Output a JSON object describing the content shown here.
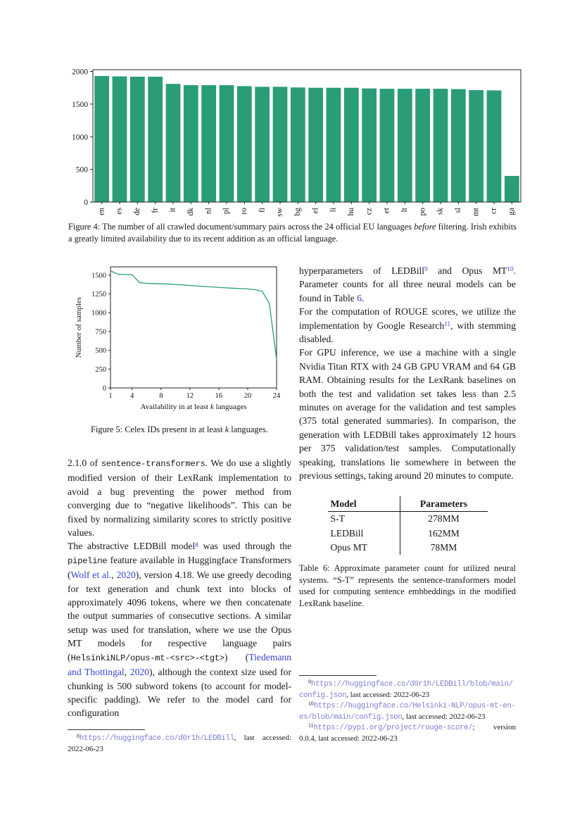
{
  "colors": {
    "accent_green": "#2a9d78",
    "cite_blue": "#3743c6",
    "url_purple": "#7e7ed2",
    "text": "#161616"
  },
  "chart_data": [
    {
      "type": "bar",
      "title": "",
      "categories": [
        "en",
        "es",
        "de",
        "fr",
        "it",
        "dk",
        "nl",
        "pl",
        "ro",
        "fi",
        "sw",
        "bg",
        "el",
        "li",
        "hu",
        "cz",
        "et",
        "lt",
        "po",
        "sk",
        "sl",
        "mt",
        "cr",
        "ga"
      ],
      "values": [
        1930,
        1925,
        1920,
        1920,
        1810,
        1790,
        1790,
        1790,
        1775,
        1765,
        1765,
        1755,
        1750,
        1750,
        1750,
        1740,
        1735,
        1735,
        1735,
        1735,
        1730,
        1715,
        1710,
        400
      ],
      "xlabel": "",
      "ylabel": "",
      "ylim": [
        0,
        2027
      ],
      "yticks": [
        0,
        500,
        1000,
        1500,
        2000
      ],
      "grid": false,
      "legend": "none",
      "bar_color": "#2a9d78"
    },
    {
      "type": "line",
      "title": "",
      "x": [
        1,
        2,
        3,
        4,
        5,
        6,
        7,
        8,
        9,
        10,
        11,
        12,
        13,
        14,
        15,
        16,
        17,
        18,
        19,
        20,
        21,
        22,
        23,
        24
      ],
      "y": [
        1556,
        1512,
        1508,
        1505,
        1401,
        1390,
        1387,
        1385,
        1381,
        1375,
        1369,
        1362,
        1355,
        1349,
        1343,
        1336,
        1330,
        1325,
        1321,
        1316,
        1306,
        1286,
        1123,
        380
      ],
      "xlabel_parts": [
        "Availability in at least ",
        "k",
        " languages"
      ],
      "ylabel": "Number of samples",
      "ylim": [
        0,
        1610
      ],
      "xlim": [
        1,
        24
      ],
      "yticks": [
        0,
        250,
        500,
        750,
        1000,
        1250,
        1500
      ],
      "xticks": [
        1,
        4,
        8,
        12,
        16,
        20,
        24
      ],
      "grid": false,
      "legend": "none",
      "line_color": "#2a9d78"
    }
  ],
  "figures": {
    "fig4_caption": [
      [
        "p",
        "Figure 4: The number of all crawled document/summary pairs across the 24 official EU languages "
      ],
      [
        "i",
        "before"
      ],
      [
        "p",
        " filtering. Irish exhibits a greatly limited availability due to its recent addition as an official language."
      ]
    ],
    "fig5_caption": [
      [
        "p",
        "Figure 5: Celex IDs present in at least "
      ],
      [
        "i",
        "k"
      ],
      [
        "p",
        " languages."
      ]
    ]
  },
  "left_column": {
    "paragraphs": [
      [
        [
          "p",
          "2.1.0 of "
        ],
        [
          "code",
          "sentence-transformers"
        ],
        [
          "p",
          ". We do use a slightly modified version of their LexRank implementation to avoid a bug preventing the power method from converging due to “negative likelihoods”. This can be fixed by normalizing similarity scores to strictly positive values."
        ]
      ],
      [
        [
          "p",
          "The abstractive LEDBill model"
        ],
        [
          "sup",
          "8"
        ],
        [
          "p",
          " was used through the "
        ],
        [
          "code",
          "pipeline"
        ],
        [
          "p",
          " feature available in Huggingface Transformers ("
        ],
        [
          "cite",
          "Wolf et al."
        ],
        [
          "p",
          ", "
        ],
        [
          "cite",
          "2020"
        ],
        [
          "p",
          "), version 4.18. We use greedy decoding for text generation and chunk text into blocks of approximately 4096 tokens, where we then concatenate the output summaries of consecutive sections. A similar setup was used for translation, where we use the Opus MT models for respective language pairs ("
        ],
        [
          "code",
          "HelsinkiNLP/opus-mt-<src>-<tgt>"
        ],
        [
          "p",
          ") ("
        ],
        [
          "cite",
          "Tiedemann and Thottingal"
        ],
        [
          "p",
          ", "
        ],
        [
          "cite",
          "2020"
        ],
        [
          "p",
          "), although the context size used for chunking is 500 subword tokens (to account for model-specific padding). We refer to the model card for configuration"
        ]
      ]
    ]
  },
  "right_column": {
    "paragraphs": [
      [
        [
          "p",
          "hyperparameters of LEDBill"
        ],
        [
          "sup",
          "9"
        ],
        [
          "p",
          " and Opus MT"
        ],
        [
          "sup",
          "10"
        ],
        [
          "p",
          ". Parameter counts for all three neural models can be found in Table "
        ],
        [
          "cite",
          "6"
        ],
        [
          "p",
          "."
        ]
      ],
      [
        [
          "p",
          "For the computation of ROUGE scores, we utilize the implementation by Google Research"
        ],
        [
          "sup",
          "11"
        ],
        [
          "p",
          ", with stemming disabled."
        ]
      ],
      [
        [
          "p",
          "For GPU inference, we use a machine with a single Nvidia Titan RTX with 24 GB GPU VRAM and 64 GB RAM. Obtaining results for the LexRank baselines on both the test and validation set takes less than 2.5 minutes on average for the validation and test samples (375 total generated summaries). In comparison, the generation with LEDBill takes approximately 12 hours per 375 validation/test samples. Computationally speaking, translations lie somewhere in between the previous settings, taking around 20 minutes to compute."
        ]
      ]
    ]
  },
  "table6": {
    "headers": [
      "Model",
      "Parameters"
    ],
    "rows": [
      [
        "S-T",
        "278MM"
      ],
      [
        "LEDBill",
        "162MM"
      ],
      [
        "Opus MT",
        "78MM"
      ]
    ],
    "caption": [
      [
        "p",
        "Table 6: Approximate parameter count for utilized neural systems. “S-T” represents the sentence-transformers model used for computing sentence embbeddings in the modified LexRank baseline."
      ]
    ]
  },
  "footnotes": {
    "fn8": [
      [
        "fnmark",
        "8"
      ],
      [
        "url",
        "https://huggingface.co/d0r1h/LEDBill"
      ],
      [
        "p",
        ", last accessed: 2022-06-23"
      ]
    ],
    "fn9": [
      [
        "fnmark",
        "9"
      ],
      [
        "url",
        "https://huggingface.co/d0r1h/LEDBill/blob/main/config.json"
      ],
      [
        "p",
        ", last accessed: 2022-06-23"
      ]
    ],
    "fn10": [
      [
        "fnmark",
        "10"
      ],
      [
        "url",
        "https://huggingface.co/Helsinki-NLP/opus-mt-en-es/blob/main/config.json"
      ],
      [
        "p",
        ", last accessed: 2022-06-23"
      ]
    ],
    "fn11": [
      [
        "fnmark",
        "11"
      ],
      [
        "url",
        "https://pypi.org/project/rouge-score/"
      ],
      [
        "p",
        "; version 0.0.4, last accessed: 2022-06-23"
      ]
    ]
  }
}
